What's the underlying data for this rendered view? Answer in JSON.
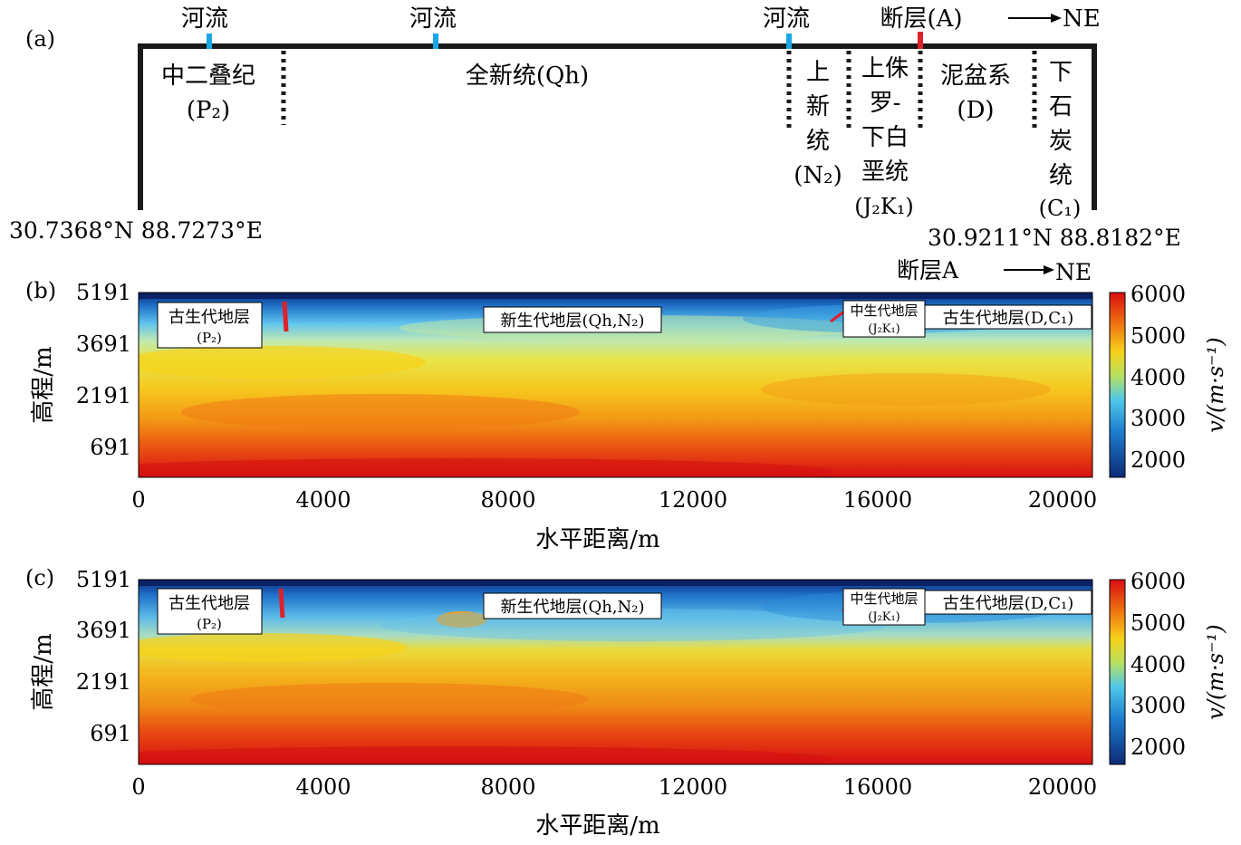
{
  "panel_a": {
    "label": "(a)",
    "direction": "NE",
    "rivers": [
      "河流",
      "河流",
      "河流"
    ],
    "fault": "断层(A)",
    "start_coord": "30.7368°N  88.7273°E",
    "end_coord": "30.9211°N  88.8182°E",
    "units": [
      {
        "lines": [
          "中二叠纪",
          "(P₂)"
        ]
      },
      {
        "lines": [
          "全新统(Qh)"
        ]
      },
      {
        "lines": [
          "上",
          "新",
          "统",
          "(N₂)"
        ]
      },
      {
        "lines": [
          "上侏",
          "罗-",
          "下白",
          "垩统",
          "(J₂K₁)"
        ]
      },
      {
        "lines": [
          "泥盆系",
          "(D)"
        ]
      },
      {
        "lines": [
          "下",
          "石",
          "炭",
          "统",
          "(C₁)"
        ]
      }
    ],
    "colors": {
      "river": "#1aa6e6",
      "fault": "#e0202a",
      "frame": "#1a1a1a"
    }
  },
  "panel_b": {
    "label": "(b)",
    "fault_label": "断层A",
    "direction": "NE",
    "xlabel": "水平距离/m",
    "ylabel": "高程/m",
    "boxes": [
      {
        "lines": [
          "古生代地层",
          "(P₂)"
        ]
      },
      {
        "lines": [
          "新生代地层(Qh,N₂)"
        ]
      },
      {
        "lines": [
          "中生代地层",
          "(J₂K₁)"
        ]
      },
      {
        "lines": [
          "古生代地层(D,C₁)"
        ]
      }
    ]
  },
  "panel_c": {
    "label": "(c)",
    "xlabel": "水平距离/m",
    "ylabel": "高程/m",
    "boxes": [
      {
        "lines": [
          "古生代地层",
          "(P₂)"
        ]
      },
      {
        "lines": [
          "新生代地层(Qh,N₂)"
        ]
      },
      {
        "lines": [
          "中生代地层",
          "(J₂K₁)"
        ]
      },
      {
        "lines": [
          "古生代地层(D,C₁)"
        ]
      }
    ]
  },
  "axes": {
    "x_ticks": [
      "0",
      "4000",
      "8000",
      "12000",
      "16000",
      "20000"
    ],
    "y_ticks": [
      "5191",
      "3691",
      "2191",
      "691"
    ],
    "colorbar_ticks": [
      "6000",
      "5000",
      "4000",
      "3000",
      "2000"
    ],
    "colorbar_label": "v/(m·s⁻¹)"
  }
}
